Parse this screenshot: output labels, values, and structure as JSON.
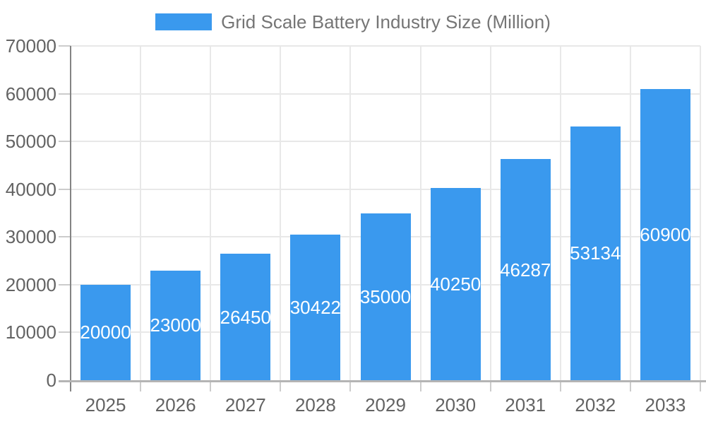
{
  "chart_data": {
    "type": "bar",
    "title": "Grid Scale Battery Industry Size (Million)",
    "legend": {
      "position": "top",
      "entries": [
        "Grid Scale Battery Industry Size (Million)"
      ]
    },
    "categories": [
      "2025",
      "2026",
      "2027",
      "2028",
      "2029",
      "2030",
      "2031",
      "2032",
      "2033"
    ],
    "values": [
      20000,
      23000,
      26450,
      30422,
      35000,
      40250,
      46287,
      53134,
      60900
    ],
    "bar_value_labels_visible": true,
    "xlabel": "",
    "ylabel": "",
    "ylim": [
      0,
      70000
    ],
    "yticks": [
      0,
      10000,
      20000,
      30000,
      40000,
      50000,
      60000,
      70000
    ],
    "grid": true
  },
  "colors": {
    "bar": "#3A99EE",
    "title_text": "#757575",
    "axis_text": "#636363",
    "value_label_text": "#FFFFFF",
    "gridline": "#E8E8E8",
    "axis_line": "#848484",
    "baseline": "#B4B4B4",
    "tick": "#CCCCCC",
    "background": "#FFFFFF"
  }
}
